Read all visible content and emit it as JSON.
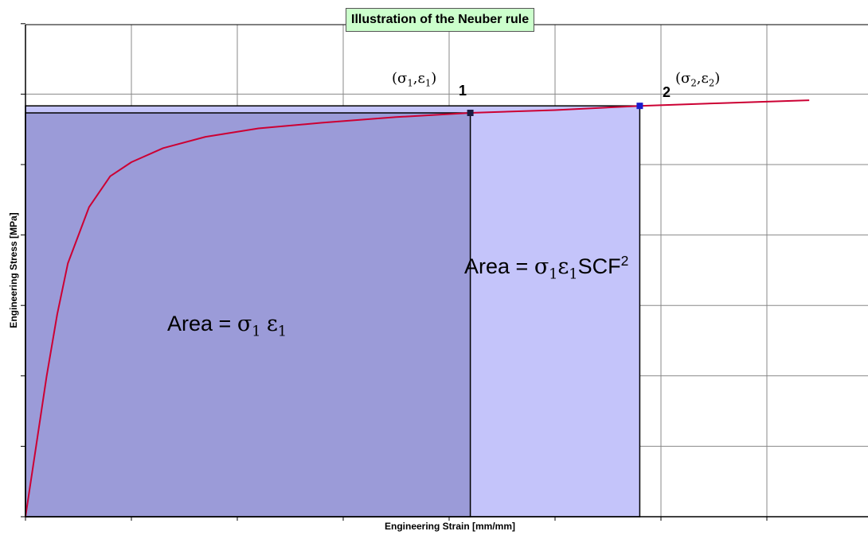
{
  "chart_data": {
    "type": "line",
    "title": "Illustration of the Neuber rule",
    "xlabel": "Engineering Strain [mm/mm]",
    "ylabel": "Engineering Stress [MPa]",
    "x_ticks_labeled": false,
    "y_ticks_labeled": false,
    "grid": true,
    "series": [
      {
        "color": "#cc0033",
        "x": [
          0.0,
          0.1,
          0.2,
          0.3,
          0.4,
          0.6,
          0.8,
          1.0,
          1.3,
          1.7,
          2.2,
          2.8,
          3.5,
          4.2,
          5.0,
          5.8,
          6.6,
          7.4
        ],
        "y": [
          0.0,
          2.5,
          5.0,
          7.2,
          9.0,
          11.0,
          12.1,
          12.6,
          13.1,
          13.5,
          13.8,
          14.0,
          14.2,
          14.35,
          14.45,
          14.6,
          14.7,
          14.8
        ]
      }
    ],
    "points": [
      {
        "label": "1",
        "coord_label": "(σ1,ε1)",
        "x": 4.2,
        "y": 14.35,
        "color": "#1a1a40"
      },
      {
        "label": "2",
        "coord_label": "(σ2,ε2)",
        "x": 5.8,
        "y": 14.6,
        "color": "#1a1acc"
      }
    ],
    "regions": [
      {
        "name": "area-1",
        "x": [
          0,
          4.2
        ],
        "y": [
          0,
          14.35
        ],
        "color": "#9b9bd8"
      },
      {
        "name": "area-2",
        "x": [
          0,
          5.8
        ],
        "y": [
          0,
          14.6
        ],
        "color": "#c4c4fa"
      }
    ],
    "annotations": {
      "area1": "Area = σ1 ε1",
      "area2": "Area = σ1ε1SCF2"
    }
  },
  "text": {
    "title": "Illustration of the Neuber rule",
    "xlabel": "Engineering Strain [mm/mm]",
    "ylabel": "Engineering Stress [MPa]",
    "p1_label": "1",
    "p2_label": "2",
    "sigma": "σ",
    "eps": "ε",
    "sub1": "1",
    "sub2": "2",
    "area_prefix": "Area = ",
    "scf": "SCF",
    "sup2": "2"
  }
}
